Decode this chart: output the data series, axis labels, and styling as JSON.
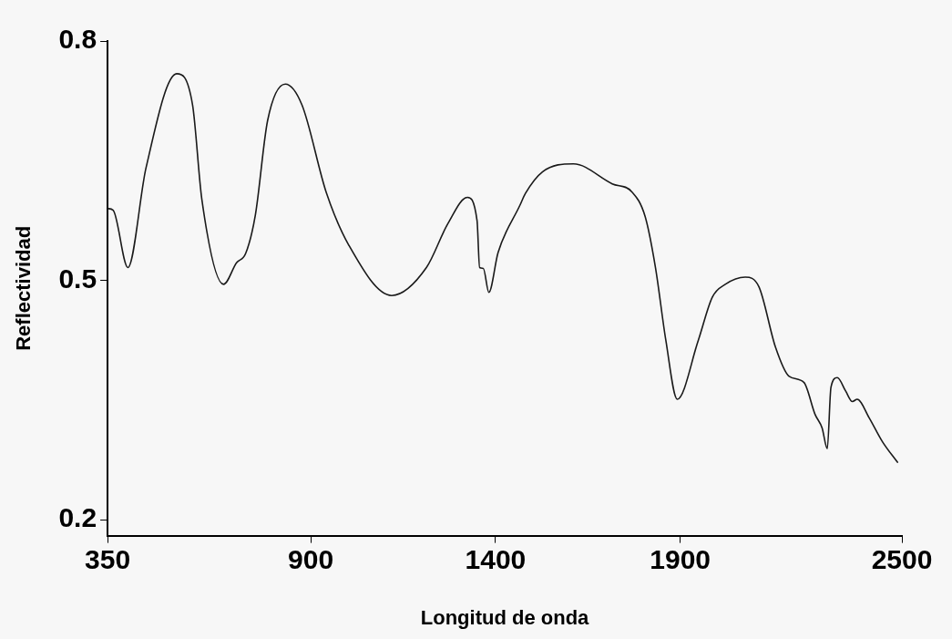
{
  "chart_data": {
    "type": "line",
    "xlabel": "Longitud de onda",
    "ylabel": "Reflectividad",
    "x": [
      350,
      365,
      405,
      454,
      537,
      580,
      605,
      664,
      699,
      724,
      750,
      783,
      831,
      876,
      942,
      1003,
      1119,
      1213,
      1271,
      1324,
      1350,
      1357,
      1367,
      1382,
      1407,
      1466,
      1481,
      1527,
      1611,
      1716,
      1769,
      1805,
      1833,
      1861,
      1892,
      1949,
      1987,
      2022,
      2076,
      2113,
      2158,
      2194,
      2235,
      2265,
      2284,
      2298,
      2308,
      2325,
      2348,
      2366,
      2379,
      2411,
      2447,
      2488
    ],
    "series": [
      {
        "color": "#1a1a1a",
        "values": [
          0.59,
          0.588,
          0.516,
          0.641,
          0.759,
          0.72,
          0.602,
          0.495,
          0.522,
          0.534,
          0.582,
          0.7,
          0.746,
          0.72,
          0.61,
          0.544,
          0.481,
          0.516,
          0.571,
          0.604,
          0.575,
          0.516,
          0.515,
          0.485,
          0.535,
          0.594,
          0.609,
          0.636,
          0.646,
          0.621,
          0.611,
          0.58,
          0.516,
          0.425,
          0.351,
          0.425,
          0.479,
          0.495,
          0.504,
          0.492,
          0.416,
          0.38,
          0.372,
          0.332,
          0.315,
          0.289,
          0.366,
          0.378,
          0.361,
          0.348,
          0.351,
          0.328,
          0.298,
          0.272
        ]
      }
    ],
    "xlim": [
      350,
      2500
    ],
    "ylim": [
      0.18,
      0.8
    ],
    "xticks": [
      350,
      900,
      1400,
      1900,
      2500
    ],
    "yticks": [
      0.2,
      0.5,
      0.8
    ],
    "marker": "none"
  }
}
